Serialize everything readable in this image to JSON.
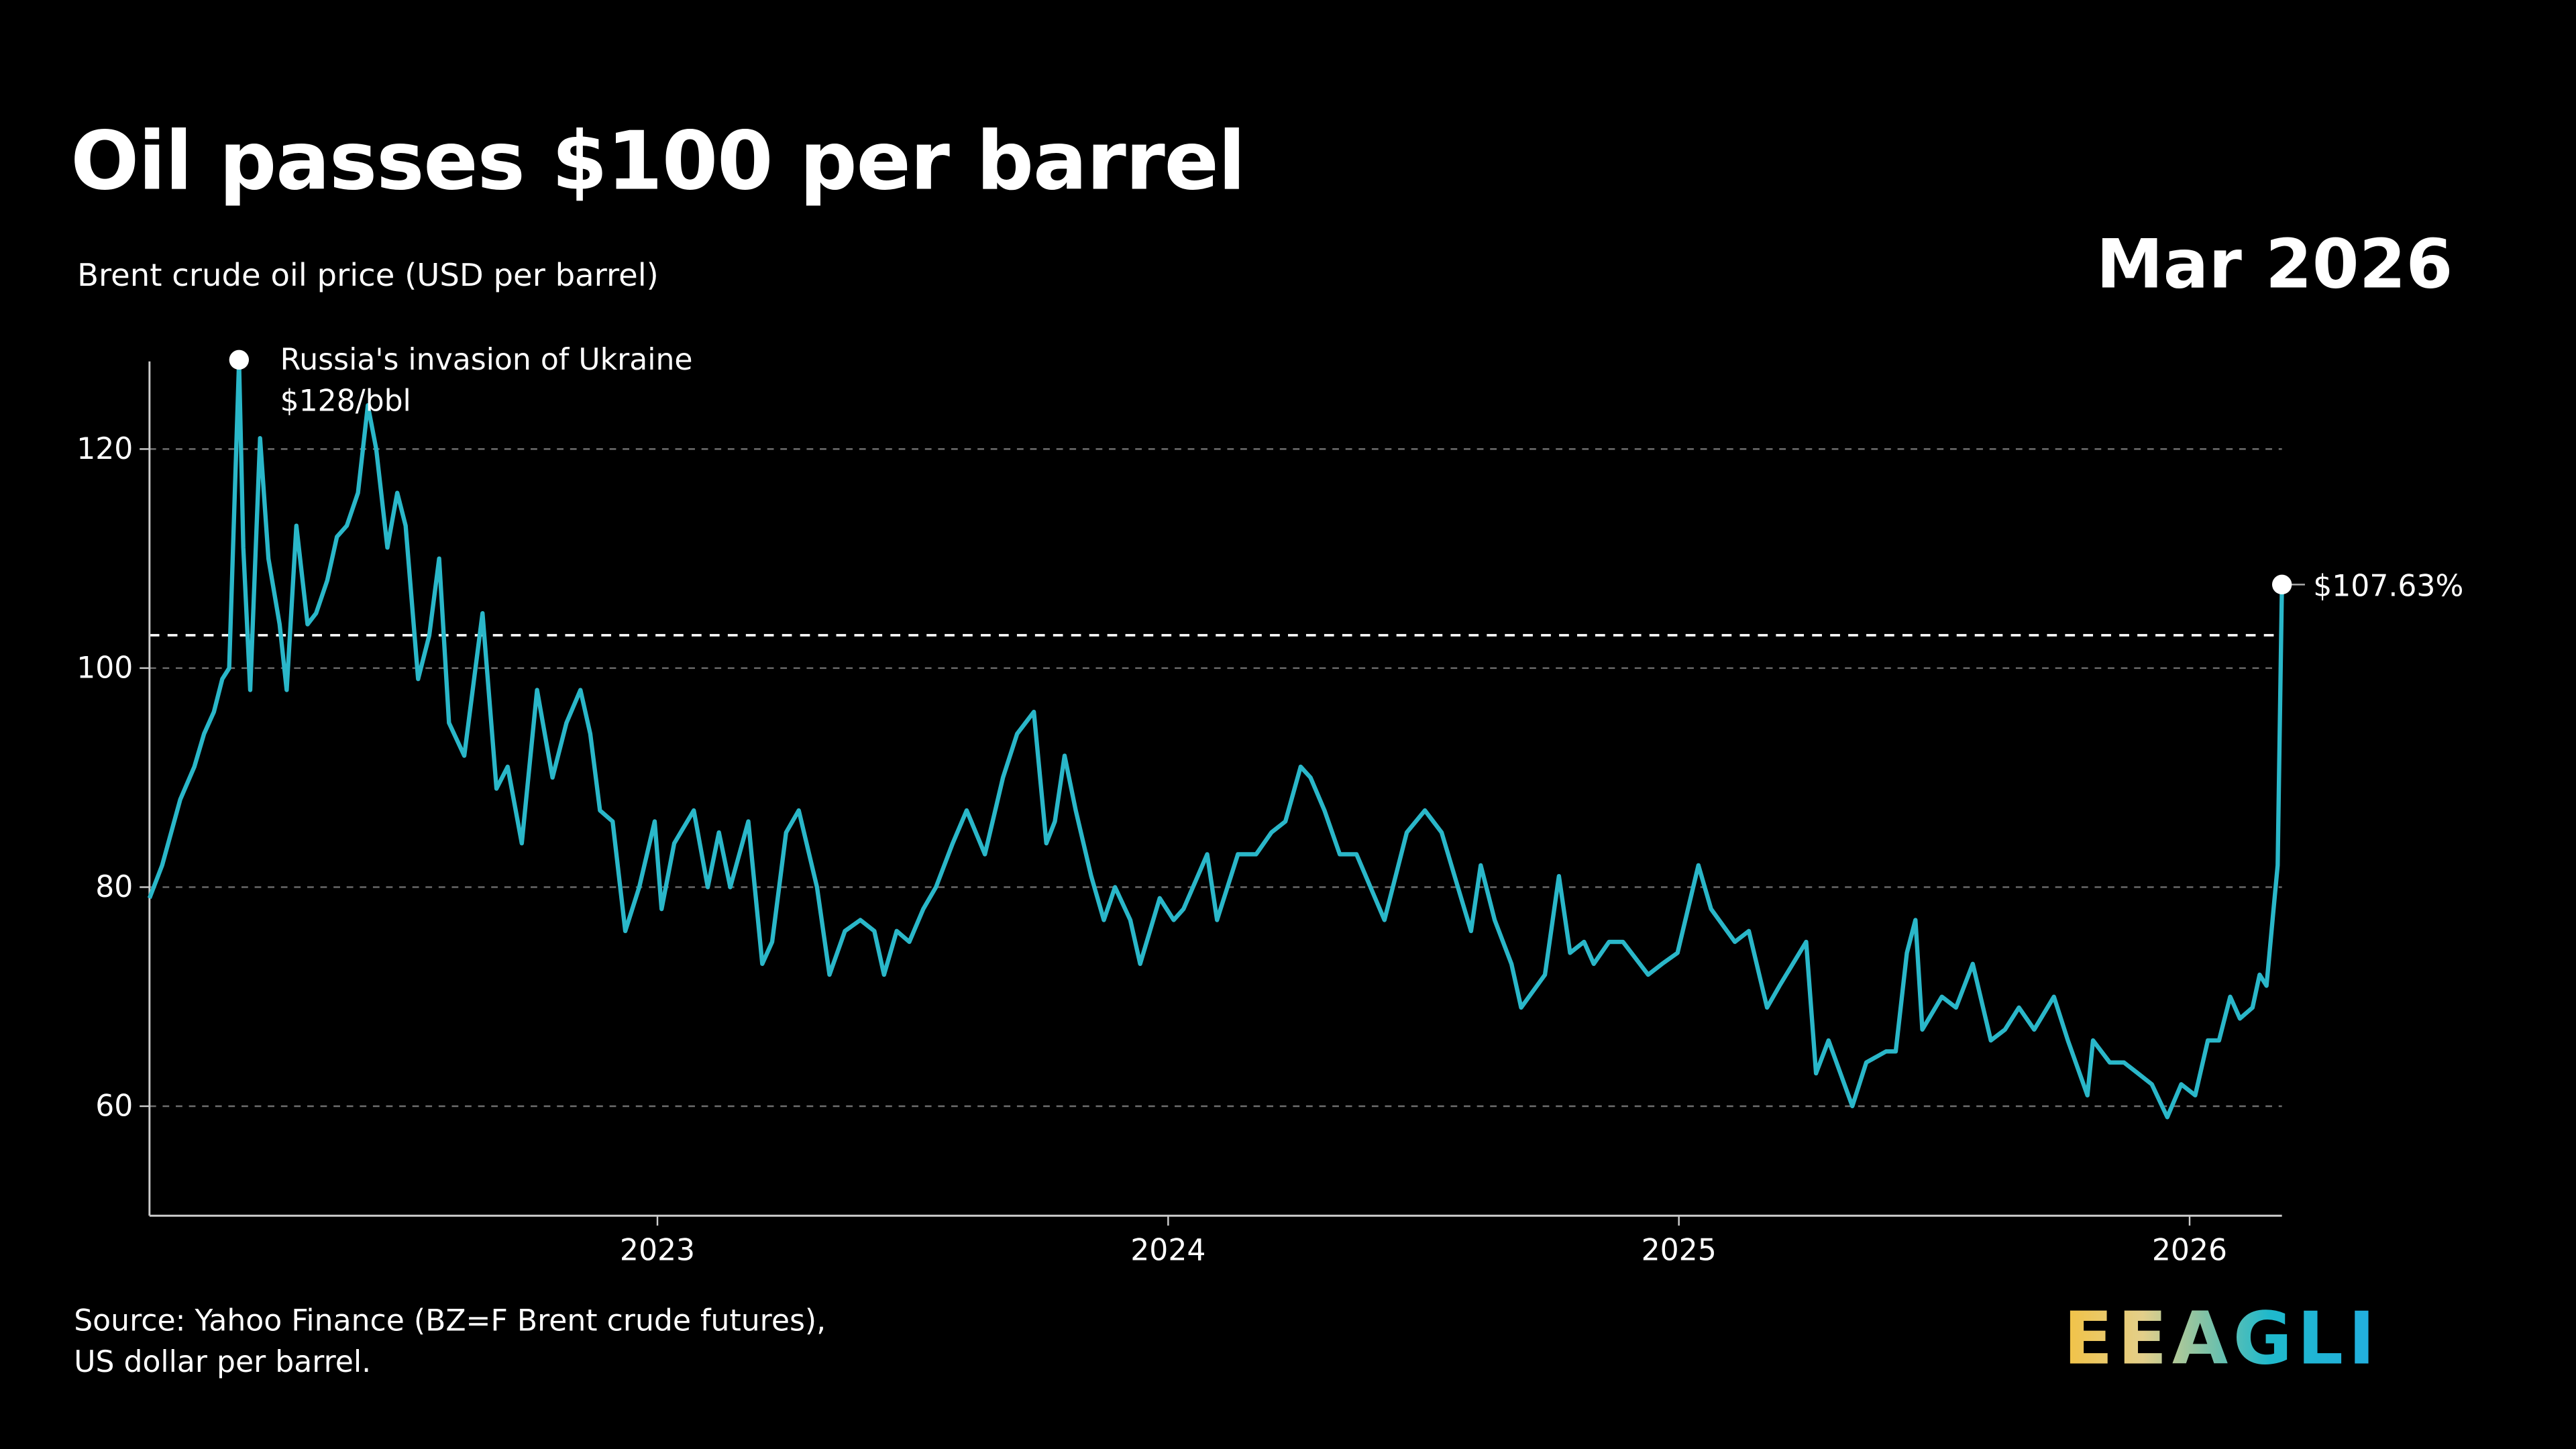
{
  "header": {
    "title": "Oil passes $100 per barrel",
    "subtitle": "Brent crude oil price (USD per barrel)",
    "period": "Mar 2026"
  },
  "footer": {
    "source_line1": "Source: Yahoo Finance (BZ=F Brent crude futures),",
    "source_line2": "US dollar per barrel.",
    "logo_text": "EEAGLI"
  },
  "colors": {
    "line": "#2ab7c9",
    "background": "#000000",
    "grid": "#777777",
    "marker": "#ffffff"
  },
  "chart_data": {
    "type": "line",
    "title": "Oil passes $100 per barrel",
    "ylabel": "Brent crude oil price (USD per barrel)",
    "xlabel": "",
    "ylim": [
      50,
      128
    ],
    "xlim": [
      "2022-01-03",
      "2026-03-08"
    ],
    "yticks": [
      60,
      80,
      100,
      120
    ],
    "ytick_labels": [
      "60",
      "80",
      "100",
      "120"
    ],
    "xticks": [
      "2023-01-01",
      "2024-01-01",
      "2025-01-01",
      "2026-01-01"
    ],
    "xtick_labels": [
      "2023",
      "2024",
      "2025",
      "2026"
    ],
    "grid": "horizontal dashed",
    "reference_line": 103,
    "annotations": [
      {
        "date": "2022-03-08",
        "value": 128,
        "line1": "Russia's invasion of Ukraine",
        "line2": "$128/bbl"
      },
      {
        "date": "2026-03-08",
        "value": 107.63,
        "label": "$107.63%"
      }
    ],
    "series": [
      {
        "x": [
          "2022-01-03",
          "2022-01-12",
          "2022-01-25",
          "2022-02-04",
          "2022-02-11",
          "2022-02-18",
          "2022-02-24",
          "2022-03-01",
          "2022-03-08",
          "2022-03-11",
          "2022-03-16",
          "2022-03-23",
          "2022-03-29",
          "2022-04-06",
          "2022-04-11",
          "2022-04-18",
          "2022-04-26",
          "2022-05-02",
          "2022-05-10",
          "2022-05-17",
          "2022-05-24",
          "2022-06-01",
          "2022-06-08",
          "2022-06-14",
          "2022-06-22",
          "2022-06-29",
          "2022-07-05",
          "2022-07-14",
          "2022-07-22",
          "2022-07-29",
          "2022-08-05",
          "2022-08-16",
          "2022-08-29",
          "2022-09-08",
          "2022-09-16",
          "2022-09-26",
          "2022-10-07",
          "2022-10-18",
          "2022-10-28",
          "2022-11-07",
          "2022-11-14",
          "2022-11-21",
          "2022-11-30",
          "2022-12-09",
          "2022-12-19",
          "2022-12-30",
          "2023-01-04",
          "2023-01-13",
          "2023-01-27",
          "2023-02-06",
          "2023-02-14",
          "2023-02-22",
          "2023-03-07",
          "2023-03-17",
          "2023-03-24",
          "2023-04-03",
          "2023-04-12",
          "2023-04-25",
          "2023-05-04",
          "2023-05-15",
          "2023-05-26",
          "2023-06-05",
          "2023-06-12",
          "2023-06-21",
          "2023-06-30",
          "2023-07-10",
          "2023-07-19",
          "2023-07-31",
          "2023-08-10",
          "2023-08-23",
          "2023-09-05",
          "2023-09-15",
          "2023-09-27",
          "2023-10-06",
          "2023-10-12",
          "2023-10-19",
          "2023-10-27",
          "2023-11-07",
          "2023-11-16",
          "2023-11-24",
          "2023-12-05",
          "2023-12-12",
          "2023-12-26",
          "2024-01-05",
          "2024-01-12",
          "2024-01-29",
          "2024-02-05",
          "2024-02-20",
          "2024-03-04",
          "2024-03-15",
          "2024-03-25",
          "2024-04-05",
          "2024-04-12",
          "2024-04-22",
          "2024-05-03",
          "2024-05-15",
          "2024-06-04",
          "2024-06-20",
          "2024-07-03",
          "2024-07-15",
          "2024-07-29",
          "2024-08-05",
          "2024-08-12",
          "2024-08-22",
          "2024-09-03",
          "2024-09-10",
          "2024-09-27",
          "2024-10-07",
          "2024-10-15",
          "2024-10-25",
          "2024-11-01",
          "2024-11-12",
          "2024-11-22",
          "2024-12-10",
          "2024-12-20",
          "2024-12-31",
          "2025-01-15",
          "2025-01-24",
          "2025-02-10",
          "2025-02-20",
          "2025-03-05",
          "2025-03-14",
          "2025-04-02",
          "2025-04-09",
          "2025-04-18",
          "2025-05-05",
          "2025-05-15",
          "2025-05-29",
          "2025-06-05",
          "2025-06-13",
          "2025-06-19",
          "2025-06-24",
          "2025-07-08",
          "2025-07-18",
          "2025-07-30",
          "2025-08-12",
          "2025-08-22",
          "2025-09-01",
          "2025-09-12",
          "2025-09-26",
          "2025-10-06",
          "2025-10-20",
          "2025-10-24",
          "2025-11-05",
          "2025-11-15",
          "2025-11-25",
          "2025-12-05",
          "2025-12-16",
          "2025-12-26",
          "2026-01-05",
          "2026-01-14",
          "2026-01-22",
          "2026-01-30",
          "2026-02-06",
          "2026-02-15",
          "2026-02-20",
          "2026-02-25",
          "2026-03-02",
          "2026-03-05",
          "2026-03-08"
        ],
        "y": [
          79,
          82,
          88,
          91,
          94,
          96,
          99,
          100,
          128,
          111,
          98,
          121,
          110,
          104,
          98,
          113,
          104,
          105,
          108,
          112,
          113,
          116,
          124,
          120,
          111,
          116,
          113,
          99,
          103,
          110,
          95,
          92,
          105,
          89,
          91,
          84,
          98,
          90,
          95,
          98,
          94,
          87,
          86,
          76,
          80,
          86,
          78,
          84,
          87,
          80,
          85,
          80,
          86,
          73,
          75,
          85,
          87,
          80,
          72,
          76,
          77,
          76,
          72,
          76,
          75,
          78,
          80,
          84,
          87,
          83,
          90,
          94,
          96,
          84,
          86,
          92,
          87,
          81,
          77,
          80,
          77,
          73,
          79,
          77,
          78,
          83,
          77,
          83,
          83,
          85,
          86,
          91,
          90,
          87,
          83,
          83,
          77,
          85,
          87,
          85,
          79,
          76,
          82,
          77,
          73,
          69,
          72,
          81,
          74,
          75,
          73,
          75,
          75,
          72,
          73,
          74,
          82,
          78,
          75,
          76,
          69,
          71,
          75,
          63,
          66,
          60,
          64,
          65,
          65,
          74,
          77,
          67,
          70,
          69,
          73,
          66,
          67,
          69,
          67,
          70,
          66,
          61,
          66,
          64,
          64,
          63,
          62,
          59,
          62,
          61,
          66,
          66,
          70,
          68,
          69,
          72,
          71,
          78,
          82,
          107.63
        ]
      }
    ]
  }
}
